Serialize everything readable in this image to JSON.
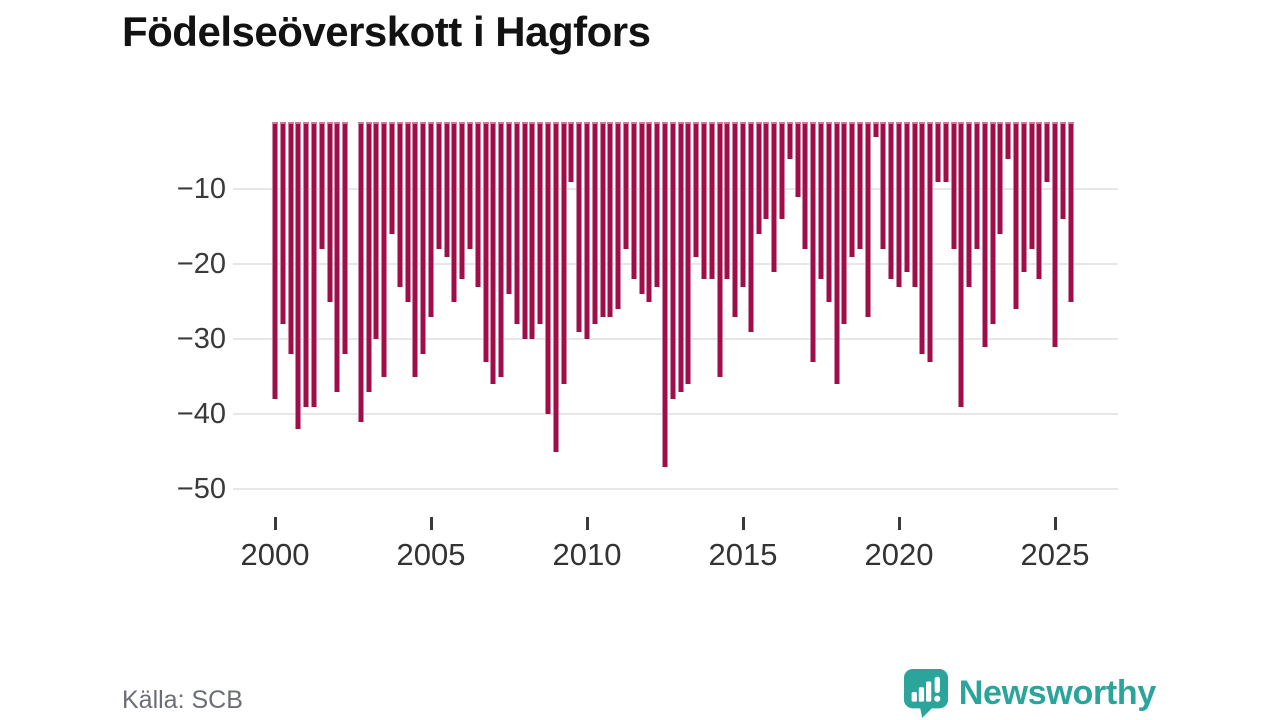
{
  "chart_data": {
    "type": "bar",
    "title": "Födelseöverskott i Hagfors",
    "source": "Källa: SCB",
    "x_start": "2000 Q1",
    "frequency": "quarterly",
    "x_tick_labels": [
      "2000",
      "2005",
      "2010",
      "2015",
      "2020",
      "2025"
    ],
    "y_tick_labels": [
      "−10",
      "−20",
      "−30",
      "−40",
      "−50"
    ],
    "y_tick_values": [
      -10,
      -20,
      -30,
      -40,
      -50
    ],
    "ylim": [
      -50,
      0
    ],
    "grid": "horizontal",
    "bar_color": "#a00d49",
    "values": [
      -38,
      -28,
      -32,
      -42,
      -39,
      -39,
      -18,
      -25,
      -37,
      -32,
      0,
      -41,
      -37,
      -30,
      -35,
      -16,
      -23,
      -25,
      -35,
      -32,
      -27,
      -18,
      -19,
      -25,
      -22,
      -18,
      -23,
      -33,
      -36,
      -35,
      -24,
      -28,
      -30,
      -30,
      -28,
      -40,
      -45,
      -36,
      -9,
      -29,
      -30,
      -28,
      -27,
      -27,
      -26,
      -18,
      -22,
      -24,
      -25,
      -23,
      -47,
      -38,
      -37,
      -36,
      -19,
      -22,
      -22,
      -35,
      -22,
      -27,
      -23,
      -29,
      -16,
      -14,
      -21,
      -14,
      -6,
      -11,
      -18,
      -33,
      -22,
      -25,
      -36,
      -28,
      -19,
      -18,
      -27,
      -3,
      -18,
      -22,
      -23,
      -21,
      -23,
      -32,
      -33,
      -9,
      -9,
      -18,
      -39,
      -23,
      -18,
      -31,
      -28,
      -16,
      -6,
      -26,
      -21,
      -18,
      -22,
      -9,
      -31,
      -14,
      -25
    ]
  },
  "logo": {
    "text": "Newsworthy",
    "accent_color": "#2ba49c"
  }
}
